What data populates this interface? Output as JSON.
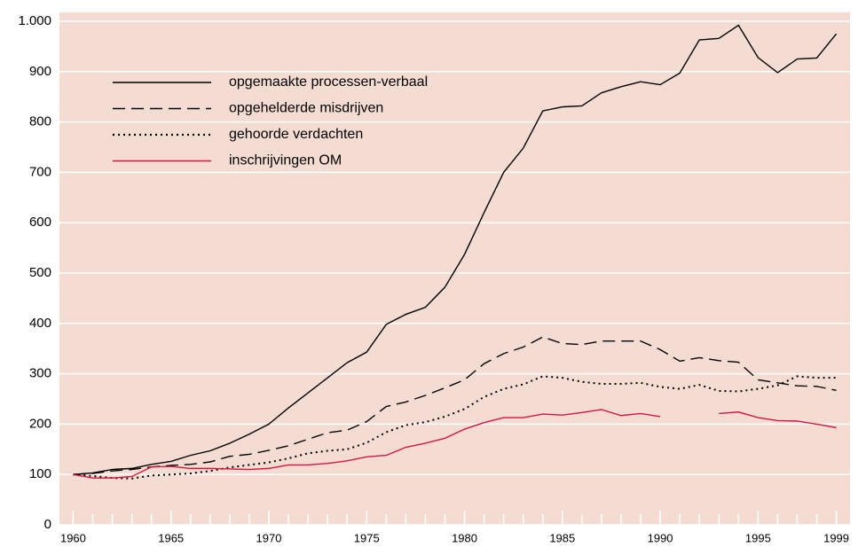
{
  "chart_data": {
    "type": "line",
    "x": [
      1960,
      1961,
      1962,
      1963,
      1964,
      1965,
      1966,
      1967,
      1968,
      1969,
      1970,
      1971,
      1972,
      1973,
      1974,
      1975,
      1976,
      1977,
      1978,
      1979,
      1980,
      1981,
      1982,
      1983,
      1984,
      1985,
      1986,
      1987,
      1988,
      1989,
      1990,
      1991,
      1992,
      1993,
      1994,
      1995,
      1996,
      1997,
      1998,
      1999
    ],
    "series": [
      {
        "name": "opgemaakte processen-verbaal",
        "color": "#000000",
        "dash": "solid",
        "values": [
          100,
          103,
          110,
          112,
          120,
          126,
          138,
          147,
          162,
          180,
          200,
          232,
          262,
          292,
          322,
          343,
          398,
          418,
          432,
          472,
          537,
          620,
          700,
          748,
          822,
          830,
          832,
          858,
          870,
          880,
          874,
          897,
          963,
          966,
          992,
          928,
          898,
          925,
          927,
          975
        ]
      },
      {
        "name": "opgehelderde misdrijven",
        "color": "#000000",
        "dash": "dashed",
        "values": [
          100,
          102,
          107,
          110,
          115,
          118,
          120,
          125,
          136,
          140,
          148,
          157,
          170,
          183,
          188,
          205,
          235,
          244,
          257,
          272,
          288,
          320,
          340,
          353,
          373,
          360,
          358,
          365,
          365,
          365,
          348,
          325,
          332,
          326,
          323,
          288,
          282,
          276,
          275,
          267
        ]
      },
      {
        "name": "gehoorde verdachten",
        "color": "#000000",
        "dash": "dotted",
        "values": [
          100,
          97,
          93,
          92,
          98,
          100,
          102,
          107,
          114,
          119,
          124,
          132,
          142,
          147,
          150,
          163,
          184,
          198,
          204,
          215,
          230,
          254,
          270,
          279,
          295,
          292,
          284,
          280,
          280,
          282,
          274,
          270,
          278,
          266,
          265,
          270,
          277,
          295,
          292,
          292
        ]
      },
      {
        "name": "inschrijvingen OM",
        "color": "#d6163f",
        "dash": "solid",
        "values": [
          100,
          93,
          93,
          96,
          115,
          116,
          112,
          112,
          111,
          110,
          112,
          119,
          119,
          122,
          127,
          135,
          138,
          154,
          162,
          172,
          190,
          203,
          213,
          213,
          220,
          218,
          223,
          229,
          217,
          221,
          215,
          null,
          null,
          221,
          224,
          213,
          207,
          206,
          200,
          193
        ]
      }
    ],
    "xlim": [
      1959.3,
      1999.7
    ],
    "xticks": [
      1960,
      1965,
      1970,
      1975,
      1980,
      1985,
      1990,
      1995,
      1999
    ],
    "ylim": [
      0,
      1000
    ],
    "yticks": [
      0,
      100,
      200,
      300,
      400,
      500,
      600,
      700,
      800,
      900,
      {
        "value": 1000,
        "label": "1.000"
      }
    ],
    "grid": true,
    "legend": "top-left"
  }
}
